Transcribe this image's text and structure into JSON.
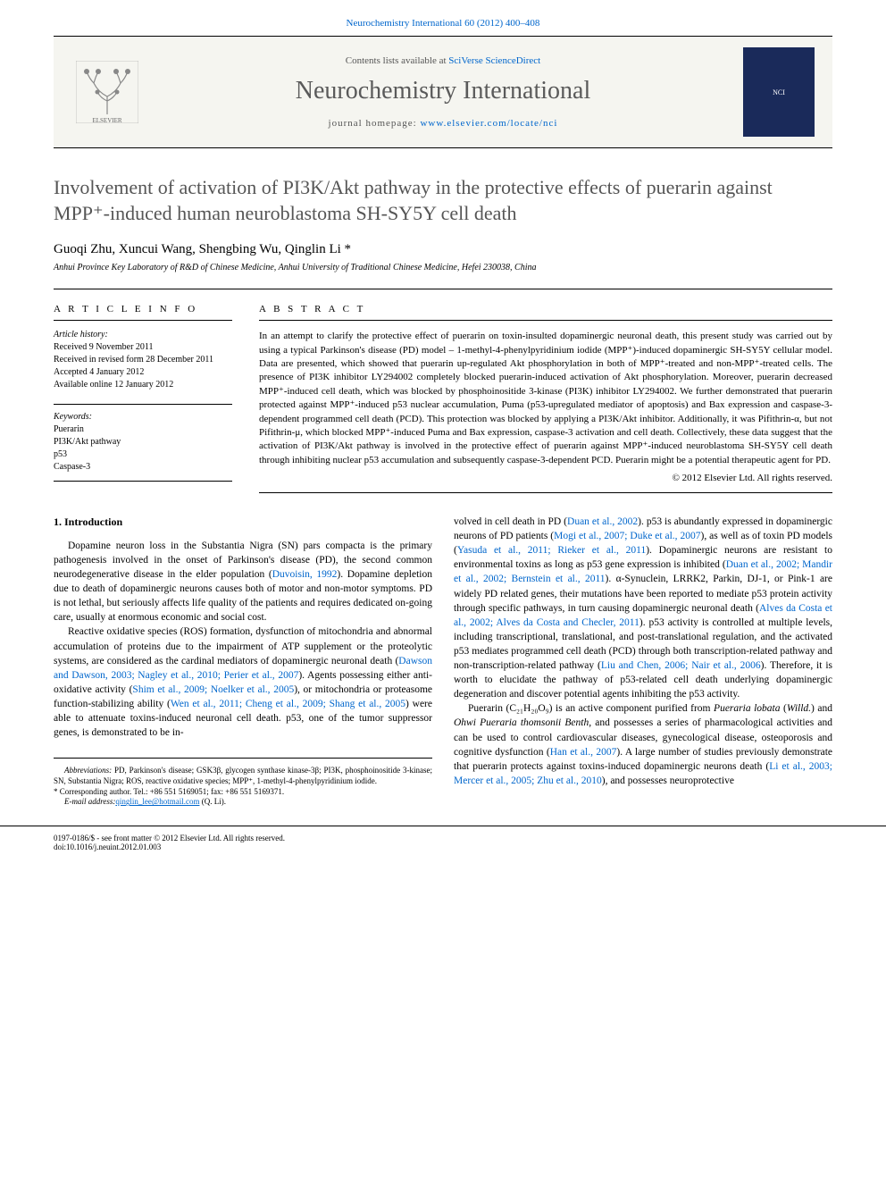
{
  "header": {
    "citation": "Neurochemistry International 60 (2012) 400–408"
  },
  "masthead": {
    "contents_prefix": "Contents lists available at ",
    "contents_link": "SciVerse ScienceDirect",
    "journal_name": "Neurochemistry International",
    "homepage_prefix": "journal homepage: ",
    "homepage_link": "www.elsevier.com/locate/nci",
    "cover_label": "NCI"
  },
  "article": {
    "title": "Involvement of activation of PI3K/Akt pathway in the protective effects of puerarin against MPP⁺-induced human neuroblastoma SH-SY5Y cell death",
    "authors": "Guoqi Zhu, Xuncui Wang, Shengbing Wu, Qinglin Li *",
    "affiliation": "Anhui Province Key Laboratory of R&D of Chinese Medicine, Anhui University of Traditional Chinese Medicine, Hefei 230038, China"
  },
  "info": {
    "heading": "A R T I C L E   I N F O",
    "history_label": "Article history:",
    "received": "Received 9 November 2011",
    "revised": "Received in revised form 28 December 2011",
    "accepted": "Accepted 4 January 2012",
    "online": "Available online 12 January 2012",
    "keywords_label": "Keywords:",
    "kw1": "Puerarin",
    "kw2": "PI3K/Akt pathway",
    "kw3": "p53",
    "kw4": "Caspase-3"
  },
  "abstract": {
    "heading": "A B S T R A C T",
    "text": "In an attempt to clarify the protective effect of puerarin on toxin-insulted dopaminergic neuronal death, this present study was carried out by using a typical Parkinson's disease (PD) model – 1-methyl-4-phenylpyridinium iodide (MPP⁺)-induced dopaminergic SH-SY5Y cellular model. Data are presented, which showed that puerarin up-regulated Akt phosphorylation in both of MPP⁺-treated and non-MPP⁺-treated cells. The presence of PI3K inhibitor LY294002 completely blocked puerarin-induced activation of Akt phosphorylation. Moreover, puerarin decreased MPP⁺-induced cell death, which was blocked by phosphoinositide 3-kinase (PI3K) inhibitor LY294002. We further demonstrated that puerarin protected against MPP⁺-induced p53 nuclear accumulation, Puma (p53-upregulated mediator of apoptosis) and Bax expression and caspase-3-dependent programmed cell death (PCD). This protection was blocked by applying a PI3K/Akt inhibitor. Additionally, it was Pifithrin-α, but not Pifithrin-μ, which blocked MPP⁺-induced Puma and Bax expression, caspase-3 activation and cell death. Collectively, these data suggest that the activation of PI3K/Akt pathway is involved in the protective effect of puerarin against MPP⁺-induced neuroblastoma SH-SY5Y cell death through inhibiting nuclear p53 accumulation and subsequently caspase-3-dependent PCD. Puerarin might be a potential therapeutic agent for PD.",
    "copyright": "© 2012 Elsevier Ltd. All rights reserved."
  },
  "body": {
    "section1_heading": "1. Introduction",
    "col1_p1": "Dopamine neuron loss in the Substantia Nigra (SN) pars compacta is the primary pathogenesis involved in the onset of Parkinson's disease (PD), the second common neurodegenerative disease in the elder population (Duvoisin, 1992). Dopamine depletion due to death of dopaminergic neurons causes both of motor and non-motor symptoms. PD is not lethal, but seriously affects life quality of the patients and requires dedicated on-going care, usually at enormous economic and social cost.",
    "col1_p2": "Reactive oxidative species (ROS) formation, dysfunction of mitochondria and abnormal accumulation of proteins due to the impairment of ATP supplement or the proteolytic systems, are considered as the cardinal mediators of dopaminergic neuronal death (Dawson and Dawson, 2003; Nagley et al., 2010; Perier et al., 2007). Agents possessing either anti-oxidative activity (Shim et al., 2009; Noelker et al., 2005), or mitochondria or proteasome function-stabilizing ability (Wen et al., 2011; Cheng et al., 2009; Shang et al., 2005) were able to attenuate toxins-induced neuronal cell death. p53, one of the tumor suppressor genes, is demonstrated to be in-",
    "col2_p1": "volved in cell death in PD (Duan et al., 2002). p53 is abundantly expressed in dopaminergic neurons of PD patients (Mogi et al., 2007; Duke et al., 2007), as well as of toxin PD models (Yasuda et al., 2011; Rieker et al., 2011). Dopaminergic neurons are resistant to environmental toxins as long as p53 gene expression is inhibited (Duan et al., 2002; Mandir et al., 2002; Bernstein et al., 2011). α-Synuclein, LRRK2, Parkin, DJ-1, or Pink-1 are widely PD related genes, their mutations have been reported to mediate p53 protein activity through specific pathways, in turn causing dopaminergic neuronal death (Alves da Costa et al., 2002; Alves da Costa and Checler, 2011). p53 activity is controlled at multiple levels, including transcriptional, translational, and post-translational regulation, and the activated p53 mediates programmed cell death (PCD) through both transcription-related pathway and non-transcription-related pathway (Liu and Chen, 2006; Nair et al., 2006). Therefore, it is worth to elucidate the pathway of p53-related cell death underlying dopaminergic degeneration and discover potential agents inhibiting the p53 activity.",
    "col2_p2": "Puerarin (C₂₁H₂₀O₉) is an active component purified from Pueraria lobata (Willd.) and Ohwi Pueraria thomsonii Benth, and possesses a series of pharmacological activities and can be used to control cardiovascular diseases, gynecological disease, osteoporosis and cognitive dysfunction (Han et al., 2007). A large number of studies previously demonstrate that puerarin protects against toxins-induced dopaminergic neurons death (Li et al., 2003; Mercer et al., 2005; Zhu et al., 2010), and possesses neuroprotective"
  },
  "abbrevs": {
    "label": "Abbreviations:",
    "text": " PD, Parkinson's disease; GSK3β, glycogen synthase kinase-3β; PI3K, phosphoinositide 3-kinase; SN, Substantia Nigra; ROS, reactive oxidative species; MPP⁺, 1-methyl-4-phenylpyridinium iodide.",
    "corr_label": "* Corresponding author. ",
    "corr_text": "Tel.: +86 551 5169051; fax: +86 551 5169371.",
    "email_label": "E-mail address: ",
    "email": "qinglin_lee@hotmail.com",
    "email_suffix": " (Q. Li)."
  },
  "footer": {
    "issn": "0197-0186/$ - see front matter © 2012 Elsevier Ltd. All rights reserved.",
    "doi": "doi:10.1016/j.neuint.2012.01.003"
  },
  "colors": {
    "link": "#0066cc",
    "title_gray": "#555555",
    "cover_bg": "#1a2a5a"
  }
}
